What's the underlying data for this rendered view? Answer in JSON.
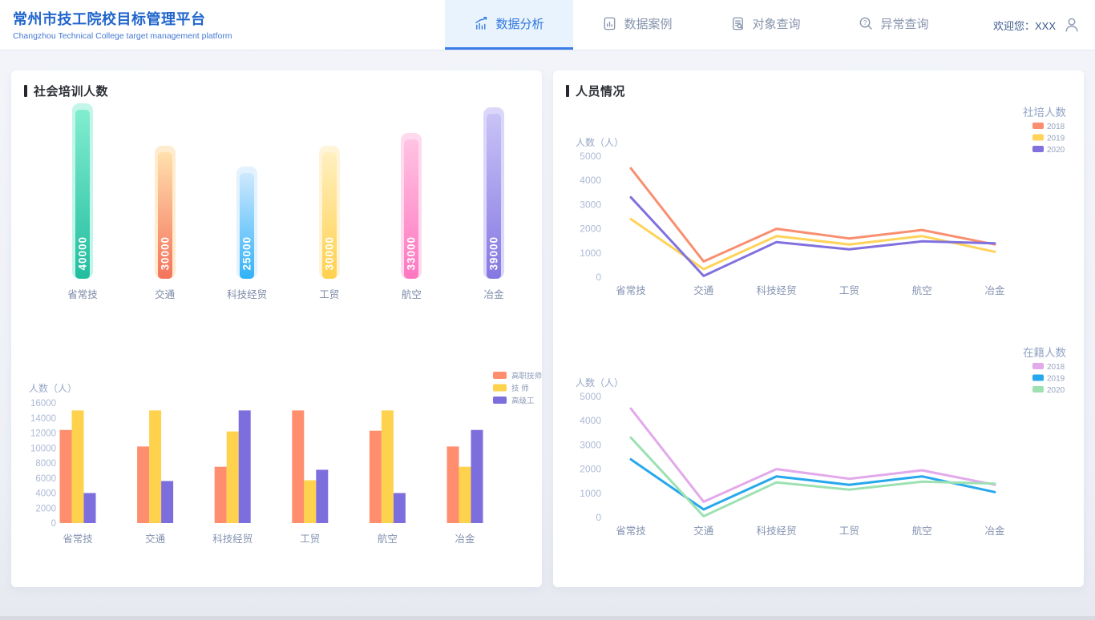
{
  "header": {
    "title": "常州市技工院校目标管理平台",
    "subtitle": "Changzhou Technical College target management platform",
    "nav": [
      {
        "label": "数据分析",
        "icon": "chart-trend-icon",
        "active": true
      },
      {
        "label": "数据案例",
        "icon": "document-chart-icon",
        "active": false
      },
      {
        "label": "对象查询",
        "icon": "document-search-icon",
        "active": false
      },
      {
        "label": "异常查询",
        "icon": "search-question-icon",
        "active": false
      }
    ],
    "welcome": "欢迎您：XXX"
  },
  "panels": {
    "left": {
      "title": "社会培训人数"
    },
    "right": {
      "title": "人员情况"
    }
  },
  "colors": {
    "header_title": "#2166CC",
    "active_tab": "#3076DD",
    "active_tab_bg": "#E8F3FD",
    "tab_underline": "#3A7BE8",
    "inactive_tab": "#8694AC",
    "panel_title": "#2B2E33",
    "axis_tick_text": "#ACB9D5",
    "axis_label_text": "#96A7C6",
    "category_text": "#8593B0",
    "legend_text": "#8B99B6",
    "page_bg": "#EEF1F7"
  },
  "chart_data": [
    {
      "id": "social_training_bars",
      "type": "bar",
      "title": "社会培训人数",
      "categories": [
        "省常技",
        "交通",
        "科技经贸",
        "工贸",
        "航空",
        "冶金"
      ],
      "values": [
        40000,
        30000,
        25000,
        30000,
        33000,
        39000
      ],
      "ylim": [
        0,
        40000
      ],
      "grid": false,
      "value_label_color": "#FFFFFF",
      "bar_styles": [
        {
          "top": "#82EDCF",
          "bottom": "#23BDA0",
          "glow": "#C3F6E8"
        },
        {
          "top": "#FFE0AC",
          "bottom": "#F4735C",
          "glow": "#FFEBCD"
        },
        {
          "top": "#CEE9FD",
          "bottom": "#32B2F9",
          "glow": "#E2F2FE"
        },
        {
          "top": "#FFF0C0",
          "bottom": "#FFD14F",
          "glow": "#FFF4D8"
        },
        {
          "top": "#FFC3E2",
          "bottom": "#FF77C1",
          "glow": "#FFD9EE"
        },
        {
          "top": "#C9C3F6",
          "bottom": "#8577E2",
          "glow": "#DBD7FA"
        }
      ]
    },
    {
      "id": "staff_levels",
      "type": "bar",
      "title": "",
      "categories": [
        "省常技",
        "交通",
        "科技经贸",
        "工贸",
        "航空",
        "冶金"
      ],
      "series": [
        {
          "name": "高职技师",
          "color": "#FF8E6F",
          "values": [
            12400,
            10200,
            7500,
            15000,
            12300,
            10200
          ]
        },
        {
          "name": "技 师",
          "color": "#FFD24E",
          "values": [
            15000,
            15000,
            12200,
            5700,
            15000,
            7500
          ]
        },
        {
          "name": "高级工",
          "color": "#7D6EDD",
          "values": [
            4000,
            5600,
            15000,
            7100,
            4000,
            12400
          ]
        }
      ],
      "xlabel": "",
      "ylabel": "人数（人）",
      "yticks": [
        0,
        2000,
        4000,
        6000,
        8000,
        10000,
        12000,
        14000,
        16000
      ],
      "ylim": [
        0,
        16000
      ],
      "grid": false,
      "legend_position": "top-right"
    },
    {
      "id": "shepei_lines",
      "type": "line",
      "title": "社培人数",
      "categories": [
        "省常技",
        "交通",
        "科技经贸",
        "工贸",
        "航空",
        "冶金"
      ],
      "series": [
        {
          "name": "2018",
          "color": "#F98F70",
          "values": [
            4500,
            650,
            2000,
            1600,
            1950,
            1350
          ]
        },
        {
          "name": "2019",
          "color": "#FFD35A",
          "values": [
            2400,
            330,
            1700,
            1350,
            1700,
            1050
          ]
        },
        {
          "name": "2020",
          "color": "#8071DE",
          "values": [
            3300,
            50,
            1450,
            1150,
            1480,
            1400
          ]
        }
      ],
      "xlabel": "",
      "ylabel": "人数（人）",
      "yticks": [
        0,
        1000,
        2000,
        3000,
        4000,
        5000
      ],
      "ylim": [
        0,
        5000
      ],
      "grid": false,
      "legend_position": "top-right"
    },
    {
      "id": "zaiji_lines",
      "type": "line",
      "title": "在籍人数",
      "categories": [
        "省常技",
        "交通",
        "科技经贸",
        "工贸",
        "航空",
        "冶金"
      ],
      "series": [
        {
          "name": "2018",
          "color": "#E2A9EB",
          "values": [
            4500,
            650,
            2000,
            1600,
            1950,
            1350
          ]
        },
        {
          "name": "2019",
          "color": "#27A8EC",
          "values": [
            2400,
            330,
            1700,
            1350,
            1700,
            1050
          ]
        },
        {
          "name": "2020",
          "color": "#9DE1B3",
          "values": [
            3300,
            50,
            1450,
            1150,
            1480,
            1400
          ]
        }
      ],
      "xlabel": "",
      "ylabel": "人数（人）",
      "yticks": [
        0,
        1000,
        2000,
        3000,
        4000,
        5000
      ],
      "ylim": [
        0,
        5000
      ],
      "grid": false,
      "legend_position": "top-right"
    }
  ]
}
